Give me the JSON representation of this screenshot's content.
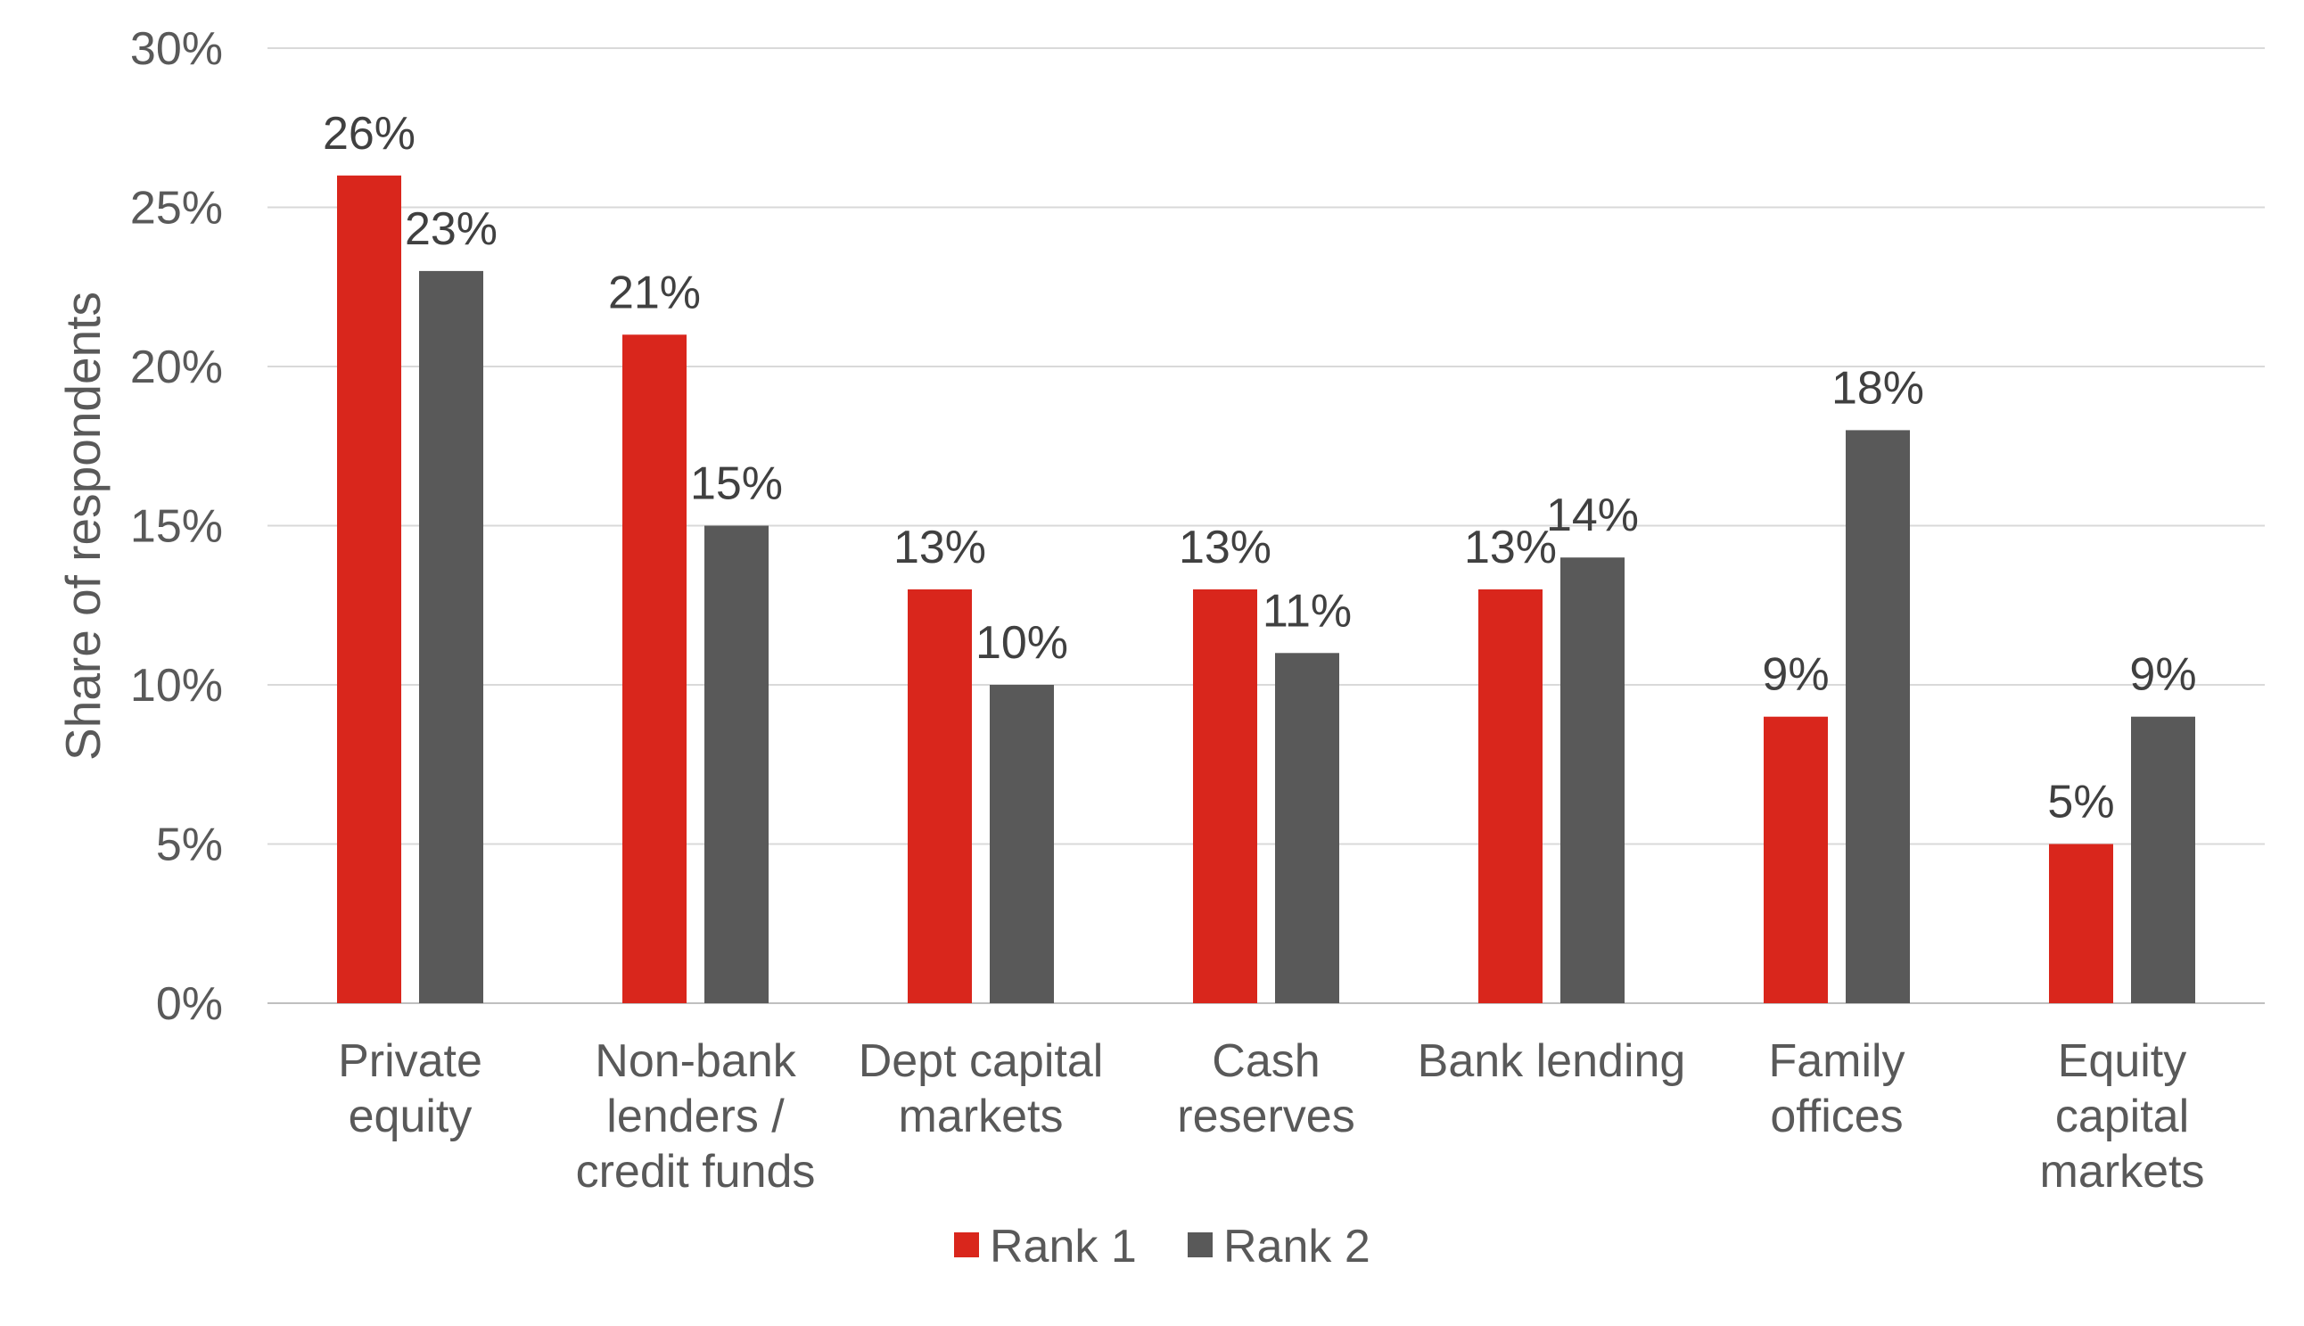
{
  "chart_data": {
    "type": "bar",
    "ylabel": "Share of respondents",
    "xlabel": "",
    "ylim": [
      0,
      30
    ],
    "ytick_values": [
      0,
      5,
      10,
      15,
      20,
      25,
      30
    ],
    "ytick_labels": [
      "0%",
      "5%",
      "10%",
      "15%",
      "20%",
      "25%",
      "30%"
    ],
    "categories": [
      [
        "Private",
        "equity"
      ],
      [
        "Non-bank",
        "lenders /",
        "credit funds"
      ],
      [
        "Dept capital",
        "markets"
      ],
      [
        "Cash",
        "reserves"
      ],
      [
        "Bank lending"
      ],
      [
        "Family",
        "offices"
      ],
      [
        "Equity",
        "capital",
        "markets"
      ]
    ],
    "series": [
      {
        "name": "Rank 1",
        "color": "#D9261C",
        "values": [
          26,
          21,
          13,
          13,
          13,
          9,
          5
        ],
        "labels": [
          "26%",
          "21%",
          "13%",
          "13%",
          "13%",
          "9%",
          "5%"
        ]
      },
      {
        "name": "Rank 2",
        "color": "#595959",
        "values": [
          23,
          15,
          10,
          11,
          14,
          18,
          9
        ],
        "labels": [
          "23%",
          "15%",
          "10%",
          "11%",
          "14%",
          "18%",
          "9%"
        ]
      }
    ],
    "grid": true,
    "gridline_color": "#D9D9D9",
    "legend_position": "bottom"
  }
}
